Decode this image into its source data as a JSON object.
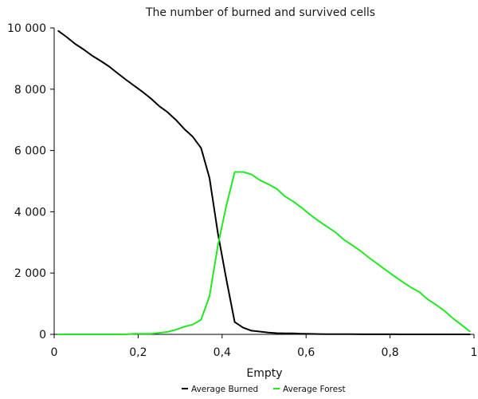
{
  "chart_data": {
    "type": "line",
    "title": "The number of burned and survived cells",
    "xlabel": "Empty",
    "ylabel": "",
    "xlim": [
      0,
      1
    ],
    "ylim": [
      0,
      10000
    ],
    "x_ticks": [
      0,
      0.2,
      0.4,
      0.6,
      0.8,
      1
    ],
    "x_tick_labels": [
      "0",
      "0,2",
      "0,4",
      "0,6",
      "0,8",
      "1"
    ],
    "y_ticks": [
      0,
      2000,
      4000,
      6000,
      8000,
      10000
    ],
    "y_tick_labels": [
      "0",
      "2 000",
      "4 000",
      "6 000",
      "8 000",
      "10 000"
    ],
    "grid": false,
    "legend_position": "bottom-center",
    "x": [
      0.01,
      0.03,
      0.05,
      0.07,
      0.09,
      0.11,
      0.13,
      0.15,
      0.17,
      0.19,
      0.21,
      0.23,
      0.25,
      0.27,
      0.29,
      0.31,
      0.33,
      0.35,
      0.37,
      0.39,
      0.41,
      0.43,
      0.45,
      0.47,
      0.49,
      0.51,
      0.53,
      0.55,
      0.57,
      0.59,
      0.61,
      0.63,
      0.65,
      0.67,
      0.69,
      0.71,
      0.73,
      0.75,
      0.77,
      0.79,
      0.81,
      0.83,
      0.85,
      0.87,
      0.89,
      0.91,
      0.93,
      0.95,
      0.97,
      0.99
    ],
    "series": [
      {
        "name": "Average Burned",
        "color": "#000000",
        "values": [
          9900,
          9700,
          9480,
          9300,
          9100,
          8930,
          8750,
          8530,
          8320,
          8120,
          7920,
          7700,
          7450,
          7250,
          7000,
          6700,
          6450,
          6080,
          5100,
          3300,
          1800,
          400,
          220,
          120,
          90,
          60,
          40,
          30,
          30,
          20,
          15,
          10,
          8,
          6,
          5,
          4,
          3,
          3,
          2,
          2,
          2,
          1,
          1,
          1,
          1,
          1,
          0,
          0,
          0,
          0
        ]
      },
      {
        "name": "Average Forest",
        "color": "#22e822",
        "values": [
          0,
          0,
          0,
          0,
          0,
          0,
          0,
          0,
          0,
          20,
          20,
          20,
          50,
          80,
          150,
          250,
          320,
          480,
          1250,
          2900,
          4200,
          5300,
          5300,
          5220,
          5030,
          4900,
          4750,
          4500,
          4330,
          4130,
          3900,
          3700,
          3510,
          3330,
          3090,
          2910,
          2720,
          2500,
          2300,
          2100,
          1900,
          1710,
          1530,
          1380,
          1140,
          960,
          760,
          520,
          310,
          100
        ]
      }
    ]
  }
}
